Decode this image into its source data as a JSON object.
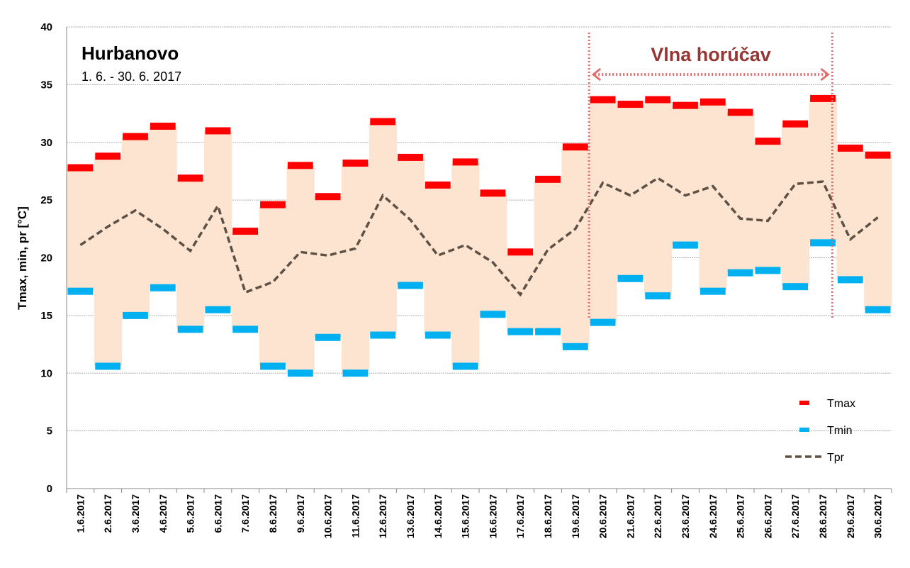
{
  "chart_data": {
    "type": "line",
    "title": "Hurbanovo",
    "subtitle": "1. 6. - 30. 6. 2017",
    "xlabel": "",
    "ylabel": "Tmax, min, pr [°C]",
    "ylim": [
      0,
      40
    ],
    "yticks": [
      0,
      5,
      10,
      15,
      20,
      25,
      30,
      35,
      40
    ],
    "grid": true,
    "legend_position": "bottom-right",
    "categories": [
      "1.6.2017",
      "2.6.2017",
      "3.6.2017",
      "4.6.2017",
      "5.6.2017",
      "6.6.2017",
      "7.6.2017",
      "8.6.2017",
      "9.6.2017",
      "10.6.2017",
      "11.6.2017",
      "12.6.2017",
      "13.6.2017",
      "14.6.2017",
      "15.6.2017",
      "16.6.2017",
      "17.6.2017",
      "18.6.2017",
      "19.6.2017",
      "20.6.2017",
      "21.6.2017",
      "22.6.2017",
      "23.6.2017",
      "24.6.2017",
      "25.6.2017",
      "26.6.2017",
      "27.6.2017",
      "28.6.2017",
      "29.6.2017",
      "30.6.2017"
    ],
    "series": [
      {
        "name": "Tmax",
        "color": "#ff0000",
        "values": [
          27.8,
          28.8,
          30.5,
          31.4,
          26.9,
          31.0,
          22.3,
          24.6,
          28.0,
          25.3,
          28.2,
          31.8,
          28.7,
          26.3,
          28.3,
          25.6,
          20.5,
          26.8,
          29.6,
          33.7,
          33.3,
          33.7,
          33.2,
          33.5,
          32.6,
          30.1,
          31.6,
          33.8,
          29.5,
          28.9
        ]
      },
      {
        "name": "Tmin",
        "color": "#00b0f0",
        "values": [
          17.1,
          10.6,
          15.0,
          17.4,
          13.8,
          15.5,
          13.8,
          10.6,
          10.0,
          13.1,
          10.0,
          13.3,
          17.6,
          13.3,
          10.6,
          15.1,
          13.6,
          13.6,
          12.3,
          14.4,
          18.2,
          16.7,
          21.1,
          17.1,
          18.7,
          18.9,
          17.5,
          21.3,
          18.1,
          15.5
        ]
      },
      {
        "name": "Tpr",
        "color": "#5f5045",
        "values": [
          21.1,
          22.7,
          24.1,
          22.5,
          20.6,
          24.5,
          17.0,
          17.9,
          20.5,
          20.2,
          20.8,
          25.4,
          23.3,
          20.2,
          21.1,
          19.6,
          16.8,
          20.7,
          22.5,
          26.5,
          25.4,
          26.9,
          25.4,
          26.2,
          23.4,
          23.2,
          26.4,
          26.6,
          21.6,
          23.5
        ]
      }
    ],
    "range_fill_color": "#fce4d0",
    "annotation": {
      "label": "Vlna horúčav",
      "start": "20.6.2017",
      "end": "28.6.2017",
      "color": "#953735",
      "line_color": "#e07070"
    }
  }
}
